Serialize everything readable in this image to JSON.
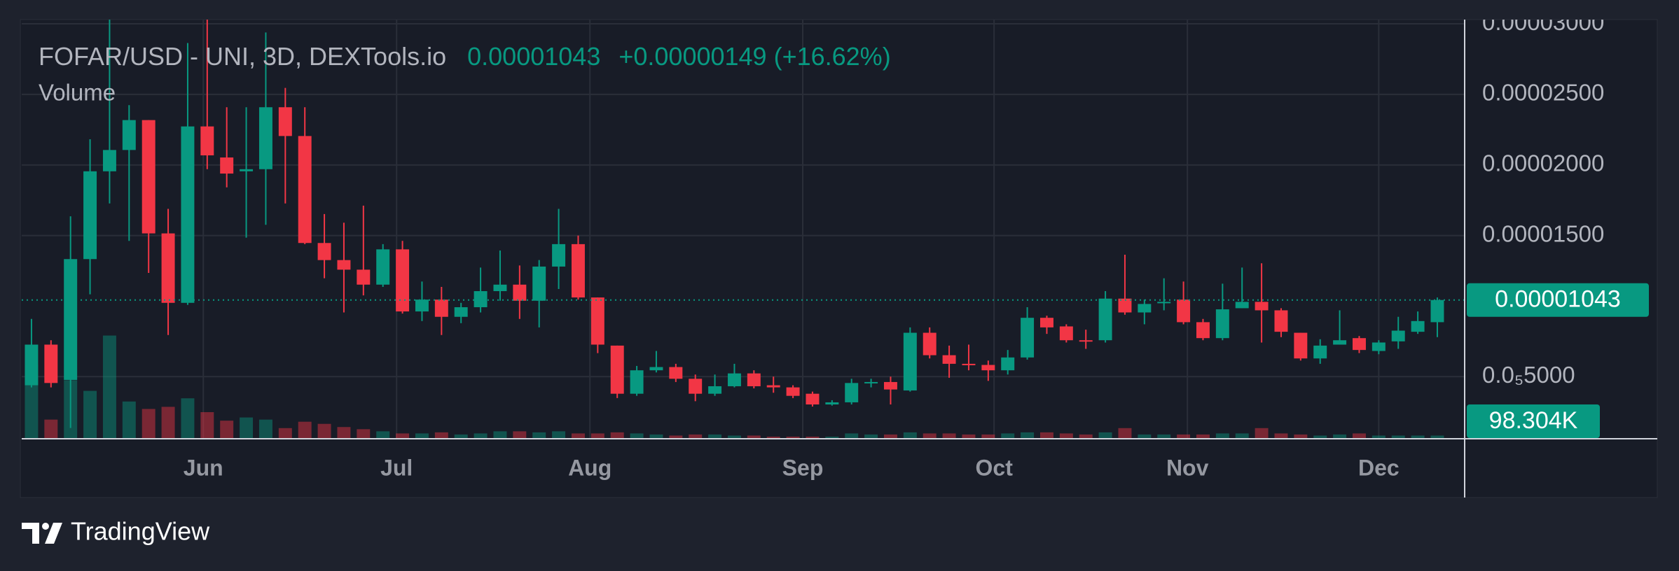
{
  "chart_data": {
    "type": "candlestick",
    "title": "FOFAR/USD - UNI, 3D, DEXTools.io",
    "price_label": "0.00001043",
    "change_label": "+0.00000149 (+16.62%)",
    "volume_title": "Volume",
    "volume_label": "98.304K",
    "up_color": "#089981",
    "down_color": "#f23645",
    "grid": true,
    "ylim": [
      6e-07,
      3.03e-05
    ],
    "yticks": [
      {
        "value": 3e-05,
        "label": "0.00003000"
      },
      {
        "value": 2.5e-05,
        "label": "0.00002500"
      },
      {
        "value": 2e-05,
        "label": "0.00002000"
      },
      {
        "value": 1.5e-05,
        "label": "0.00001500"
      },
      {
        "value": 5e-06,
        "label": "0.0₅5000"
      }
    ],
    "xlim": [
      -0.5,
      73.4
    ],
    "xticks": [
      {
        "value": 8.8,
        "label": "Jun"
      },
      {
        "value": 18.7,
        "label": "Jul"
      },
      {
        "value": 28.6,
        "label": "Aug"
      },
      {
        "value": 39.5,
        "label": "Sep"
      },
      {
        "value": 49.3,
        "label": "Oct"
      },
      {
        "value": 59.2,
        "label": "Nov"
      },
      {
        "value": 69.0,
        "label": "Dec"
      }
    ],
    "volume_lim": [
      0,
      13000000
    ],
    "open": [
      4.39e-06,
      7.27e-06,
      4.77e-06,
      1.333e-05,
      1.955e-05,
      2.106e-05,
      2.318e-05,
      1.515e-05,
      1.023e-05,
      2.273e-05,
      2.053e-05,
      1.955e-05,
      1.97e-05,
      2.409e-05,
      2.205e-05,
      1.447e-05,
      1.326e-05,
      1.258e-05,
      1.152e-05,
      1.402e-05,
      9.62e-06,
      1.046e-05,
      9.24e-06,
      9.92e-06,
      1.106e-05,
      1.152e-05,
      1.038e-05,
      1.28e-05,
      1.439e-05,
      1.061e-05,
      7.2e-06,
      3.79e-06,
      5.45e-06,
      5.68e-06,
      4.85e-06,
      3.79e-06,
      4.32e-06,
      5.23e-06,
      4.39e-06,
      4.24e-06,
      3.79e-06,
      3.03e-06,
      3.18e-06,
      4.55e-06,
      4.62e-06,
      4.02e-06,
      8.11e-06,
      6.52e-06,
      5.91e-06,
      5.83e-06,
      5.45e-06,
      6.36e-06,
      9.17e-06,
      8.56e-06,
      7.58e-06,
      7.58e-06,
      1.053e-05,
      9.55e-06,
      1.023e-05,
      1.046e-05,
      8.86e-06,
      7.73e-06,
      9.85e-06,
      1.03e-05,
      9.7e-06,
      8.11e-06,
      6.29e-06,
      7.27e-06,
      7.73e-06,
      6.82e-06,
      7.5e-06,
      8.18e-06,
      8.86e-06
    ],
    "high": [
      9.09e-06,
      7.58e-06,
      1.636e-05,
      2.182e-05,
      3.03e-05,
      2.424e-05,
      2.318e-05,
      1.689e-05,
      2.864e-05,
      3.03e-05,
      2.409e-05,
      2.409e-05,
      2.939e-05,
      2.546e-05,
      2.409e-05,
      1.652e-05,
      1.591e-05,
      1.712e-05,
      1.439e-05,
      1.462e-05,
      1.174e-05,
      1.136e-05,
      1.023e-05,
      1.273e-05,
      1.394e-05,
      1.288e-05,
      1.326e-05,
      1.689e-05,
      1.5e-05,
      1.061e-05,
      7.2e-06,
      5.76e-06,
      6.82e-06,
      5.91e-06,
      5.15e-06,
      5.15e-06,
      5.91e-06,
      5.45e-06,
      5e-06,
      4.39e-06,
      3.94e-06,
      3.33e-06,
      4.85e-06,
      4.85e-06,
      5e-06,
      8.49e-06,
      8.49e-06,
      7.2e-06,
      7.27e-06,
      6.14e-06,
      6.89e-06,
      9.92e-06,
      9.32e-06,
      8.71e-06,
      8.33e-06,
      1.106e-05,
      1.364e-05,
      1.046e-05,
      1.197e-05,
      1.174e-05,
      9.09e-06,
      1.159e-05,
      1.273e-05,
      1.303e-05,
      9.85e-06,
      8.11e-06,
      7.65e-06,
      9.7e-06,
      7.88e-06,
      7.58e-06,
      9.24e-06,
      9.62e-06,
      1.061e-05
    ],
    "low": [
      4.24e-06,
      4.24e-06,
      1.36e-06,
      1.083e-05,
      1.727e-05,
      1.462e-05,
      1.235e-05,
      7.95e-06,
      1.008e-05,
      1.97e-05,
      1.841e-05,
      1.485e-05,
      1.576e-05,
      1.727e-05,
      1.439e-05,
      1.197e-05,
      9.55e-06,
      1.076e-05,
      1.136e-05,
      9.47e-06,
      8.94e-06,
      7.95e-06,
      8.79e-06,
      9.55e-06,
      1.038e-05,
      9.09e-06,
      8.49e-06,
      1.121e-05,
      1.046e-05,
      6.67e-06,
      3.48e-06,
      3.64e-06,
      5.3e-06,
      4.62e-06,
      3.26e-06,
      3.64e-06,
      4.24e-06,
      4.17e-06,
      3.86e-06,
      3.48e-06,
      2.88e-06,
      2.95e-06,
      3.03e-06,
      4.24e-06,
      3.03e-06,
      3.94e-06,
      6.29e-06,
      4.92e-06,
      5.45e-06,
      4.7e-06,
      5.15e-06,
      6.21e-06,
      8.03e-06,
      7.42e-06,
      6.97e-06,
      7.42e-06,
      9.39e-06,
      8.71e-06,
      9.7e-06,
      8.71e-06,
      7.58e-06,
      7.58e-06,
      9.85e-06,
      7.42e-06,
      7.8e-06,
      6.14e-06,
      5.91e-06,
      7.27e-06,
      6.67e-06,
      6.59e-06,
      6.97e-06,
      8.03e-06,
      7.8e-06
    ],
    "close": [
      7.27e-06,
      4.55e-06,
      1.333e-05,
      1.955e-05,
      2.106e-05,
      2.318e-05,
      1.515e-05,
      1.023e-05,
      2.273e-05,
      2.068e-05,
      1.939e-05,
      1.97e-05,
      2.409e-05,
      2.205e-05,
      1.447e-05,
      1.326e-05,
      1.258e-05,
      1.152e-05,
      1.402e-05,
      9.62e-06,
      1.046e-05,
      9.24e-06,
      9.92e-06,
      1.106e-05,
      1.152e-05,
      1.038e-05,
      1.28e-05,
      1.439e-05,
      1.061e-05,
      7.27e-06,
      3.79e-06,
      5.45e-06,
      5.68e-06,
      4.85e-06,
      3.79e-06,
      4.32e-06,
      5.23e-06,
      4.32e-06,
      4.24e-06,
      3.64e-06,
      3.03e-06,
      3.18e-06,
      4.55e-06,
      4.62e-06,
      4.09e-06,
      8.11e-06,
      6.52e-06,
      5.91e-06,
      5.83e-06,
      5.45e-06,
      6.36e-06,
      9.17e-06,
      8.49e-06,
      7.58e-06,
      7.5e-06,
      1.053e-05,
      9.55e-06,
      1.015e-05,
      1.03e-05,
      8.86e-06,
      7.73e-06,
      9.77e-06,
      1.03e-05,
      9.7e-06,
      8.18e-06,
      6.29e-06,
      7.2e-06,
      7.58e-06,
      6.89e-06,
      7.42e-06,
      8.26e-06,
      8.94e-06,
      1.043e-05
    ],
    "volume": [
      2310000,
      594000,
      1815000,
      1485000,
      3201000,
      1155000,
      924000,
      990000,
      1254000,
      825000,
      561000,
      660000,
      594000,
      330000,
      528000,
      462000,
      363000,
      297000,
      231000,
      165000,
      165000,
      198000,
      132000,
      165000,
      231000,
      231000,
      198000,
      231000,
      165000,
      165000,
      198000,
      165000,
      132000,
      99000,
      132000,
      132000,
      99000,
      99000,
      66000,
      66000,
      66000,
      66000,
      165000,
      132000,
      132000,
      198000,
      165000,
      165000,
      132000,
      132000,
      165000,
      198000,
      198000,
      165000,
      132000,
      198000,
      330000,
      132000,
      132000,
      132000,
      132000,
      165000,
      165000,
      330000,
      165000,
      132000,
      99000,
      132000,
      165000,
      99000,
      99000,
      99000,
      98304
    ]
  },
  "footer": {
    "brand": "TradingView"
  }
}
